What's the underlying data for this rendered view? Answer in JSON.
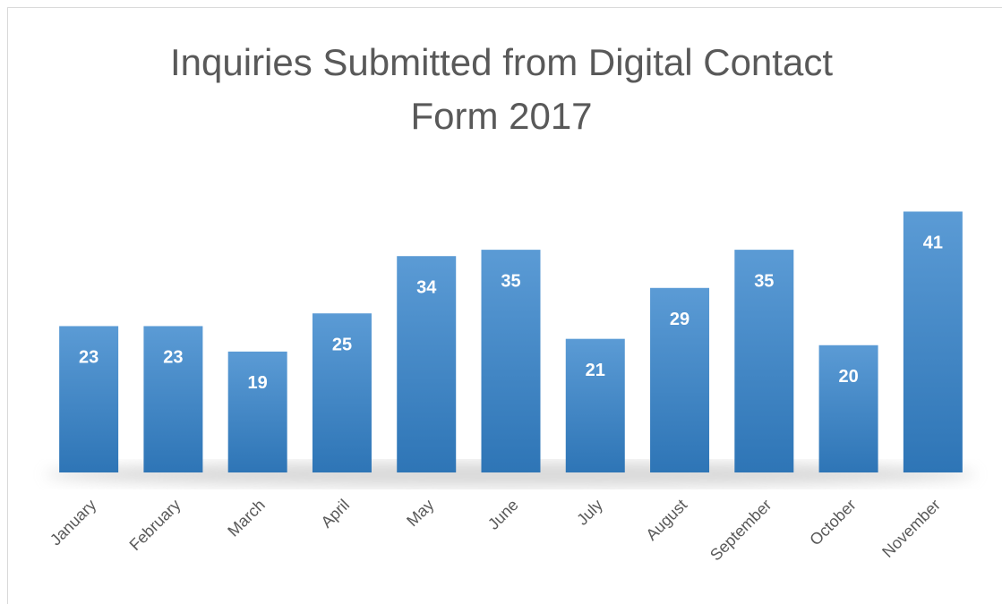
{
  "chart_data": {
    "type": "bar",
    "title": "Inquiries Submitted from Digital Contact Form 2017",
    "categories": [
      "January",
      "February",
      "March",
      "April",
      "May",
      "June",
      "July",
      "August",
      "September",
      "October",
      "November"
    ],
    "values": [
      23,
      23,
      19,
      25,
      34,
      35,
      21,
      29,
      35,
      20,
      41
    ],
    "color": "#5b9bd5",
    "ylim": [
      0,
      45
    ]
  }
}
